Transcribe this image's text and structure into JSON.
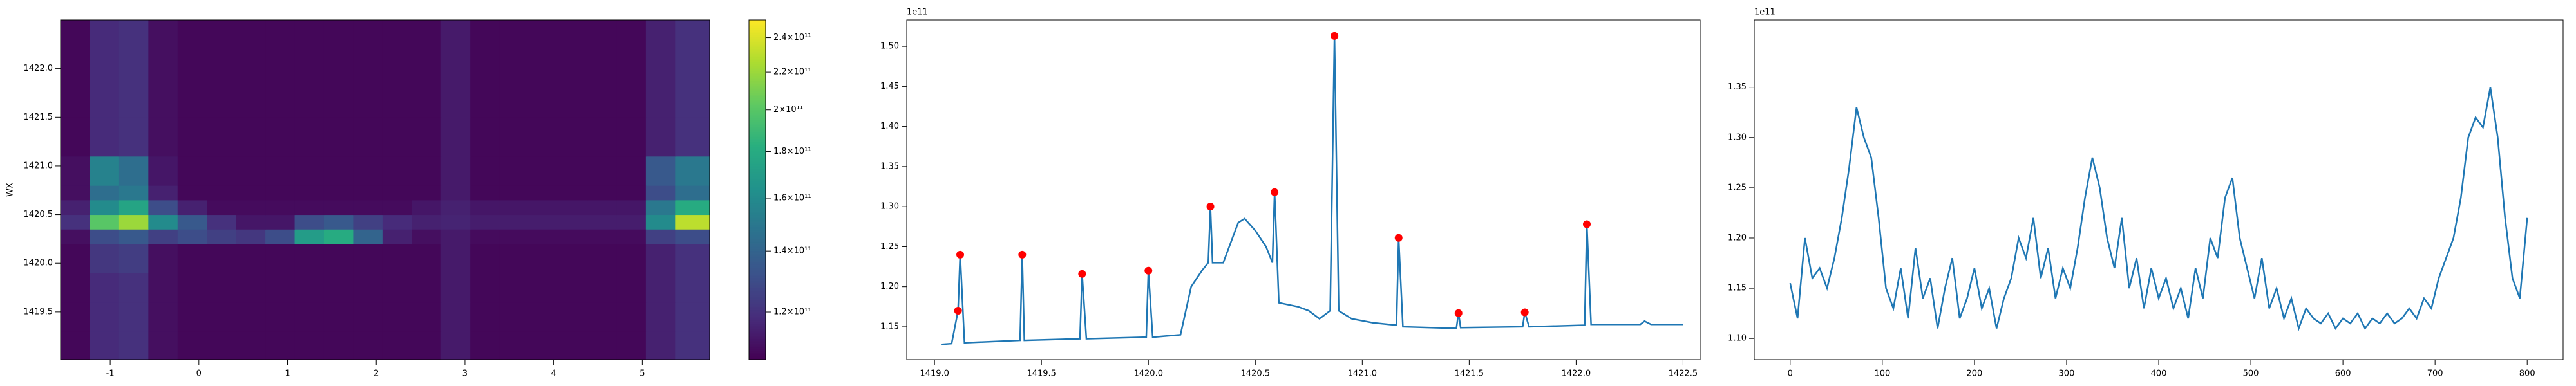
{
  "chart_data": [
    {
      "type": "heatmap",
      "ylabel": "WX",
      "colormap": "viridis",
      "xlim": [
        -1.56,
        5.76
      ],
      "ylim": [
        1419.01,
        1422.5
      ],
      "xticks": [
        -1,
        0,
        1,
        2,
        3,
        4,
        5
      ],
      "yticks": [
        1419.5,
        {
          "value": 1420,
          "label": "1420.0"
        },
        1420.5,
        {
          "value": 1421,
          "label": "1421.0"
        },
        1421.5,
        {
          "value": 1422,
          "label": "1422.0"
        }
      ],
      "xbins": [
        -1.56,
        -1.23,
        -0.9,
        -0.57,
        -0.24,
        0.09,
        0.42,
        0.75,
        1.08,
        1.41,
        1.74,
        2.07,
        2.4,
        2.73,
        3.06,
        3.39,
        3.72,
        4.05,
        4.38,
        4.71,
        5.04,
        5.37,
        5.76
      ],
      "ybins": [
        1419.01,
        1419.3,
        1419.6,
        1419.9,
        1420.2,
        1420.35,
        1420.5,
        1420.65,
        1420.8,
        1421.1,
        1421.5,
        1422.0,
        1422.5
      ],
      "z": [
        [
          108000000000.0,
          118000000000.0,
          120000000000.0,
          110000000000.0,
          108000000000.0,
          108000000000.0,
          108000000000.0,
          108000000000.0,
          108000000000.0,
          108000000000.0,
          108000000000.0,
          108000000000.0,
          108000000000.0,
          113000000000.0,
          108000000000.0,
          108000000000.0,
          108000000000.0,
          108000000000.0,
          108000000000.0,
          108000000000.0,
          115000000000.0,
          120000000000.0
        ],
        [
          108000000000.0,
          118000000000.0,
          120000000000.0,
          110000000000.0,
          108000000000.0,
          108000000000.0,
          108000000000.0,
          108000000000.0,
          108000000000.0,
          108000000000.0,
          108000000000.0,
          108000000000.0,
          108000000000.0,
          113000000000.0,
          108000000000.0,
          108000000000.0,
          108000000000.0,
          108000000000.0,
          108000000000.0,
          108000000000.0,
          115000000000.0,
          120000000000.0
        ],
        [
          108000000000.0,
          118000000000.0,
          120000000000.0,
          110000000000.0,
          108000000000.0,
          108000000000.0,
          108000000000.0,
          108000000000.0,
          108000000000.0,
          108000000000.0,
          108000000000.0,
          108000000000.0,
          108000000000.0,
          113000000000.0,
          108000000000.0,
          108000000000.0,
          108000000000.0,
          108000000000.0,
          108000000000.0,
          108000000000.0,
          115000000000.0,
          120000000000.0
        ],
        [
          108000000000.0,
          122000000000.0,
          124000000000.0,
          110000000000.0,
          108000000000.0,
          108000000000.0,
          108000000000.0,
          108000000000.0,
          108000000000.0,
          108000000000.0,
          108000000000.0,
          108000000000.0,
          108000000000.0,
          113000000000.0,
          108000000000.0,
          108000000000.0,
          108000000000.0,
          108000000000.0,
          108000000000.0,
          108000000000.0,
          115000000000.0,
          120000000000.0
        ],
        [
          110000000000.0,
          130000000000.0,
          135000000000.0,
          125000000000.0,
          130000000000.0,
          125000000000.0,
          122000000000.0,
          130000000000.0,
          170000000000.0,
          180000000000.0,
          140000000000.0,
          115000000000.0,
          110000000000.0,
          113000000000.0,
          109000000000.0,
          109000000000.0,
          109000000000.0,
          109000000000.0,
          109000000000.0,
          109000000000.0,
          125000000000.0,
          130000000000.0
        ],
        [
          120000000000.0,
          200000000000.0,
          220000000000.0,
          160000000000.0,
          135000000000.0,
          120000000000.0,
          112000000000.0,
          112000000000.0,
          130000000000.0,
          135000000000.0,
          125000000000.0,
          118000000000.0,
          115000000000.0,
          116000000000.0,
          114000000000.0,
          114000000000.0,
          114000000000.0,
          114000000000.0,
          114000000000.0,
          114000000000.0,
          160000000000.0,
          230000000000.0
        ],
        [
          115000000000.0,
          160000000000.0,
          175000000000.0,
          130000000000.0,
          115000000000.0,
          109000000000.0,
          109000000000.0,
          109000000000.0,
          109000000000.0,
          109000000000.0,
          109000000000.0,
          109000000000.0,
          112000000000.0,
          115000000000.0,
          112000000000.0,
          112000000000.0,
          112000000000.0,
          112000000000.0,
          112000000000.0,
          112000000000.0,
          150000000000.0,
          180000000000.0
        ],
        [
          110000000000.0,
          145000000000.0,
          150000000000.0,
          115000000000.0,
          108000000000.0,
          108000000000.0,
          108000000000.0,
          108000000000.0,
          108000000000.0,
          108000000000.0,
          108000000000.0,
          108000000000.0,
          108000000000.0,
          113000000000.0,
          108000000000.0,
          108000000000.0,
          108000000000.0,
          108000000000.0,
          108000000000.0,
          108000000000.0,
          130000000000.0,
          145000000000.0
        ],
        [
          110000000000.0,
          155000000000.0,
          145000000000.0,
          112000000000.0,
          108000000000.0,
          108000000000.0,
          108000000000.0,
          108000000000.0,
          108000000000.0,
          108000000000.0,
          108000000000.0,
          108000000000.0,
          108000000000.0,
          113000000000.0,
          108000000000.0,
          108000000000.0,
          108000000000.0,
          108000000000.0,
          108000000000.0,
          108000000000.0,
          135000000000.0,
          150000000000.0
        ],
        [
          108000000000.0,
          118000000000.0,
          120000000000.0,
          110000000000.0,
          108000000000.0,
          108000000000.0,
          108000000000.0,
          108000000000.0,
          108000000000.0,
          108000000000.0,
          108000000000.0,
          108000000000.0,
          108000000000.0,
          113000000000.0,
          108000000000.0,
          108000000000.0,
          108000000000.0,
          108000000000.0,
          108000000000.0,
          108000000000.0,
          115000000000.0,
          120000000000.0
        ],
        [
          108000000000.0,
          118000000000.0,
          120000000000.0,
          110000000000.0,
          108000000000.0,
          108000000000.0,
          108000000000.0,
          108000000000.0,
          108000000000.0,
          108000000000.0,
          108000000000.0,
          108000000000.0,
          108000000000.0,
          113000000000.0,
          108000000000.0,
          108000000000.0,
          108000000000.0,
          108000000000.0,
          108000000000.0,
          108000000000.0,
          115000000000.0,
          120000000000.0
        ],
        [
          108000000000.0,
          118000000000.0,
          120000000000.0,
          110000000000.0,
          108000000000.0,
          108000000000.0,
          108000000000.0,
          108000000000.0,
          108000000000.0,
          108000000000.0,
          108000000000.0,
          108000000000.0,
          108000000000.0,
          113000000000.0,
          108000000000.0,
          108000000000.0,
          108000000000.0,
          108000000000.0,
          108000000000.0,
          108000000000.0,
          115000000000.0,
          120000000000.0
        ]
      ],
      "colorbar": {
        "scale": "log",
        "lim": [
          106400000000.0,
          251000000000.0
        ],
        "ticks": [
          {
            "value": 120000000000.0,
            "label": "1.2×10¹¹"
          },
          {
            "value": 140000000000.0,
            "label": "1.4×10¹¹"
          },
          {
            "value": 160000000000.0,
            "label": "1.6×10¹¹"
          },
          {
            "value": 180000000000.0,
            "label": "1.8×10¹¹"
          },
          {
            "value": 200000000000.0,
            "label": "2×10¹¹"
          },
          {
            "value": 220000000000.0,
            "label": "2.2×10¹¹"
          },
          {
            "value": 240000000000.0,
            "label": "2.4×10¹¹"
          }
        ]
      }
    },
    {
      "type": "line",
      "color": "#1f77b4",
      "offset_text": "1e11",
      "xlim": [
        1418.87,
        1422.58
      ],
      "ylim": [
        1.109,
        1.533
      ],
      "xticks": [
        {
          "value": 1419,
          "label": "1419.0"
        },
        1419.5,
        {
          "value": 1420,
          "label": "1420.0"
        },
        1420.5,
        {
          "value": 1421,
          "label": "1421.0"
        },
        1421.5,
        {
          "value": 1422,
          "label": "1422.0"
        },
        1422.5
      ],
      "yticks": [
        1.15,
        {
          "value": 1.2,
          "label": "1.20"
        },
        1.25,
        {
          "value": 1.3,
          "label": "1.30"
        },
        1.35,
        {
          "value": 1.4,
          "label": "1.40"
        },
        1.45,
        {
          "value": 1.5,
          "label": "1.50"
        }
      ],
      "x": [
        1419.03,
        1419.08,
        1419.11,
        1419.12,
        1419.14,
        1419.4,
        1419.41,
        1419.42,
        1419.68,
        1419.69,
        1419.71,
        1419.99,
        1420.0,
        1420.02,
        1420.15,
        1420.2,
        1420.25,
        1420.28,
        1420.29,
        1420.3,
        1420.35,
        1420.42,
        1420.45,
        1420.5,
        1420.55,
        1420.58,
        1420.59,
        1420.61,
        1420.7,
        1420.75,
        1420.8,
        1420.85,
        1420.87,
        1420.89,
        1420.95,
        1421.05,
        1421.16,
        1421.17,
        1421.19,
        1421.44,
        1421.45,
        1421.46,
        1421.75,
        1421.76,
        1421.78,
        1422.04,
        1422.05,
        1422.07,
        1422.3,
        1422.32,
        1422.35,
        1422.5
      ],
      "values": [
        1.128,
        1.129,
        1.17,
        1.24,
        1.13,
        1.133,
        1.24,
        1.133,
        1.135,
        1.216,
        1.135,
        1.137,
        1.22,
        1.137,
        1.14,
        1.2,
        1.22,
        1.23,
        1.3,
        1.23,
        1.23,
        1.28,
        1.285,
        1.27,
        1.25,
        1.23,
        1.318,
        1.18,
        1.175,
        1.17,
        1.16,
        1.17,
        1.513,
        1.17,
        1.16,
        1.155,
        1.152,
        1.261,
        1.15,
        1.148,
        1.167,
        1.149,
        1.15,
        1.168,
        1.15,
        1.152,
        1.278,
        1.153,
        1.153,
        1.157,
        1.153,
        1.153
      ],
      "peaks": {
        "color": "#ff0000",
        "x": [
          1419.11,
          1419.12,
          1419.41,
          1419.69,
          1420.0,
          1420.29,
          1420.59,
          1420.87,
          1421.17,
          1421.45,
          1421.76,
          1422.05
        ],
        "values": [
          1.17,
          1.24,
          1.24,
          1.216,
          1.22,
          1.3,
          1.318,
          1.513,
          1.261,
          1.167,
          1.168,
          1.278
        ]
      }
    },
    {
      "type": "line",
      "color": "#1f77b4",
      "offset_text": "1e11",
      "xlim": [
        -39,
        839
      ],
      "ylim": [
        1.079,
        1.417
      ],
      "xticks": [
        0,
        100,
        200,
        300,
        400,
        500,
        600,
        700,
        800
      ],
      "yticks": [
        {
          "value": 1.1,
          "label": "1.10"
        },
        1.15,
        {
          "value": 1.2,
          "label": "1.20"
        },
        1.25,
        {
          "value": 1.3,
          "label": "1.30"
        },
        1.35
      ],
      "x": [
        0,
        8,
        16,
        24,
        32,
        40,
        48,
        56,
        64,
        72,
        80,
        88,
        96,
        104,
        112,
        120,
        128,
        136,
        144,
        152,
        160,
        168,
        176,
        184,
        192,
        200,
        208,
        216,
        224,
        232,
        240,
        248,
        256,
        264,
        272,
        280,
        288,
        296,
        304,
        312,
        320,
        328,
        336,
        344,
        352,
        360,
        368,
        376,
        384,
        392,
        400,
        408,
        416,
        424,
        432,
        440,
        448,
        456,
        464,
        472,
        480,
        488,
        496,
        504,
        512,
        520,
        528,
        536,
        544,
        552,
        560,
        568,
        576,
        584,
        592,
        600,
        608,
        616,
        624,
        632,
        640,
        648,
        656,
        664,
        672,
        680,
        688,
        696,
        704,
        712,
        720,
        728,
        736,
        744,
        752,
        760,
        768,
        776,
        784,
        792,
        800
      ],
      "values": [
        1.155,
        1.12,
        1.2,
        1.16,
        1.17,
        1.15,
        1.18,
        1.22,
        1.27,
        1.33,
        1.3,
        1.28,
        1.22,
        1.15,
        1.13,
        1.17,
        1.12,
        1.19,
        1.14,
        1.16,
        1.11,
        1.15,
        1.18,
        1.12,
        1.14,
        1.17,
        1.13,
        1.15,
        1.11,
        1.14,
        1.16,
        1.2,
        1.18,
        1.22,
        1.16,
        1.19,
        1.14,
        1.17,
        1.15,
        1.19,
        1.24,
        1.28,
        1.25,
        1.2,
        1.17,
        1.22,
        1.15,
        1.18,
        1.13,
        1.17,
        1.14,
        1.16,
        1.13,
        1.15,
        1.12,
        1.17,
        1.14,
        1.2,
        1.18,
        1.24,
        1.26,
        1.2,
        1.17,
        1.14,
        1.18,
        1.13,
        1.15,
        1.12,
        1.14,
        1.11,
        1.13,
        1.12,
        1.115,
        1.125,
        1.11,
        1.12,
        1.115,
        1.125,
        1.11,
        1.12,
        1.115,
        1.125,
        1.115,
        1.12,
        1.13,
        1.12,
        1.14,
        1.13,
        1.16,
        1.18,
        1.2,
        1.24,
        1.3,
        1.32,
        1.31,
        1.35,
        1.3,
        1.22,
        1.16,
        1.14,
        1.22
      ]
    }
  ]
}
